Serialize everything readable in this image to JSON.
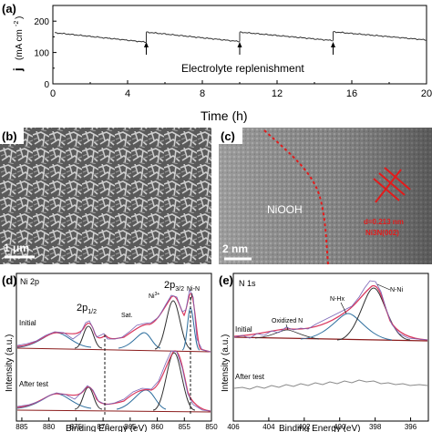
{
  "chart_data": [
    {
      "panel": "(a)",
      "type": "line",
      "xlabel": "Time (h)",
      "ylabel_main": "j",
      "ylabel_unit": "(mA cm",
      "ylabel_exp": "-2",
      "ylabel_close": ")",
      "xlim": [
        0,
        20
      ],
      "ylim": [
        0,
        250
      ],
      "xticks": [
        "0",
        "4",
        "8",
        "12",
        "16",
        "20"
      ],
      "yticks": [
        "0",
        "100",
        "200"
      ],
      "segments": [
        {
          "x": [
            0.1,
            5.0
          ],
          "y": [
            163,
            133
          ]
        },
        {
          "x": [
            5.0,
            10.0
          ],
          "y": [
            165,
            135
          ]
        },
        {
          "x": [
            10.0,
            15.0
          ],
          "y": [
            165,
            138
          ]
        },
        {
          "x": [
            15.0,
            20.0
          ],
          "y": [
            166,
            140
          ]
        }
      ],
      "markers_x": [
        5,
        10,
        15
      ],
      "annotation": "Electrolyte replenishment"
    },
    {
      "panel": "(b)",
      "type": "image",
      "scale_bar": "1 μm"
    },
    {
      "panel": "(c)",
      "type": "image",
      "label_phase": "NiOOH",
      "label_d1": "d=0.213 nm",
      "label_d2": "Ni3N(002)",
      "scale_bar": "2 nm"
    },
    {
      "panel": "(d)",
      "type": "line",
      "title": "Ni 2p",
      "xlabel": "Binding Energy (eV)",
      "ylabel": "Intensity (a.u.)",
      "xlim": [
        886,
        850
      ],
      "xticks": [
        "885",
        "880",
        "875",
        "870",
        "865",
        "860",
        "855",
        "850"
      ],
      "labels": [
        "2p1/2",
        "2p3/2",
        "Sat.",
        "Ni3+",
        "Ni-N"
      ],
      "sample_initial": "Initial",
      "sample_after": "After test",
      "dashed_x": [
        870,
        852.5
      ]
    },
    {
      "panel": "(e)",
      "type": "line",
      "title": "N 1s",
      "xlabel": "Binding Energy (eV)",
      "ylabel": "Intensity (a.u.)",
      "xlim": [
        406,
        395
      ],
      "xticks": [
        "406",
        "404",
        "402",
        "400",
        "398",
        "396"
      ],
      "labels": [
        "Oxidized N",
        "N-Hx",
        "N-Ni"
      ],
      "sample_initial": "Initial",
      "sample_after": "After test"
    }
  ],
  "panels": {
    "a": {
      "label": "(a)"
    },
    "b": {
      "label": "(b)",
      "scale": "1 μm"
    },
    "c": {
      "label": "(c)",
      "phase": "NiOOH",
      "spacing": "d=0.213 nm",
      "plane": "Ni3N(002)",
      "scale": "2 nm"
    },
    "d": {
      "label": "(d)",
      "title": "Ni 2p",
      "p12": "2p",
      "p12sub": "1/2",
      "p32": "2p",
      "p32sub": "3/2",
      "sat": "Sat.",
      "ni3": "Ni",
      "ni3sup": "3+",
      "nin": "Ni-N",
      "initial": "Initial",
      "after": "After test",
      "xlabel": "Binding Energy (eV)",
      "ylabel": "Intensity (a.u.)"
    },
    "e": {
      "label": "(e)",
      "title": "N 1s",
      "oxn": "Oxidized N",
      "nhx": "N-Hx",
      "nni": "N-Ni",
      "initial": "Initial",
      "after": "After test",
      "xlabel": "Binding Energy (eV)",
      "ylabel": "Intensity (a.u.)"
    }
  }
}
